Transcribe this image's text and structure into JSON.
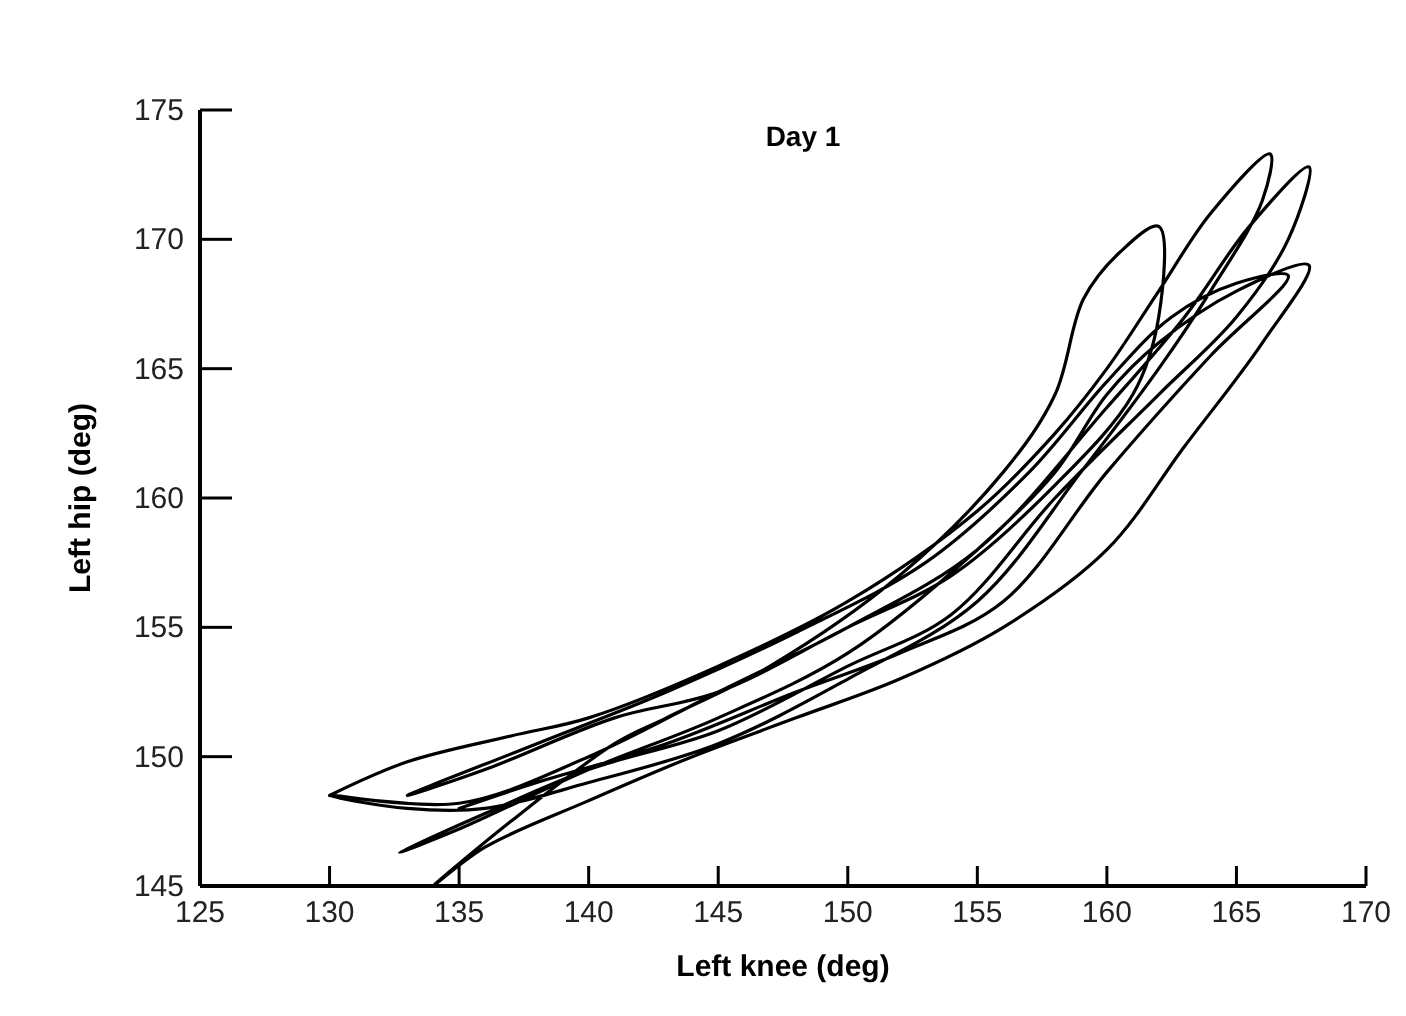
{
  "chart_data": {
    "type": "line",
    "title": "Day 1",
    "xlabel": "Left knee (deg)",
    "ylabel": "Left hip (deg)",
    "xlim": [
      125,
      170
    ],
    "ylim": [
      145,
      175
    ],
    "xticks": [
      125,
      130,
      135,
      140,
      145,
      150,
      155,
      160,
      165,
      170
    ],
    "yticks": [
      145,
      150,
      155,
      160,
      165,
      170,
      175
    ],
    "grid": false,
    "marker": "none",
    "line_style": "solid",
    "series": [
      {
        "color": "#000000",
        "x": [
          130,
          133,
          137,
          140,
          145,
          150,
          155,
          158,
          160,
          162,
          164,
          166.3,
          166,
          164,
          162,
          159,
          155,
          150,
          145,
          140,
          136,
          133,
          130,
          135,
          140,
          145,
          150,
          155,
          160,
          163,
          165.5,
          167.8,
          167,
          165,
          162,
          158,
          154,
          150,
          145,
          140,
          136,
          132.7,
          135,
          140,
          145,
          150,
          155,
          158,
          160,
          162,
          165,
          167.8,
          166,
          163,
          160,
          156,
          152,
          148,
          144,
          140,
          136,
          134,
          137,
          141,
          143,
          147,
          152,
          156,
          158,
          159.1,
          160.5,
          162,
          162,
          161,
          158,
          154,
          150,
          145,
          141,
          136,
          133,
          138,
          143,
          148,
          153,
          157,
          160,
          162.5,
          165,
          167,
          164,
          160,
          156,
          152,
          148,
          143,
          138,
          135
        ],
        "values": [
          148.5,
          149.8,
          150.8,
          151.5,
          153.5,
          156,
          159.5,
          162.5,
          165,
          168,
          171,
          173.3,
          171.5,
          168,
          165,
          161,
          156,
          153,
          150.5,
          149,
          148,
          148,
          148.5,
          148.2,
          150,
          152.5,
          155,
          158,
          163.5,
          167,
          170.5,
          172.8,
          170,
          167,
          164,
          160,
          155.5,
          153.5,
          151,
          149.5,
          147.8,
          146.3,
          147.2,
          149.5,
          151.5,
          154,
          158,
          161,
          164,
          166,
          168,
          169,
          166,
          162,
          158,
          155,
          153,
          151.5,
          150,
          148.3,
          146.5,
          145,
          147.5,
          150.5,
          151.5,
          153.5,
          157,
          161,
          164,
          167.7,
          169.5,
          170.5,
          167,
          164,
          160.5,
          157,
          155,
          152.5,
          151.5,
          149.5,
          148.5,
          150.5,
          152.5,
          154.8,
          157.5,
          161,
          164.5,
          167,
          168.3,
          168.6,
          165.5,
          161,
          156,
          154,
          152.5,
          150.5,
          149,
          148
        ]
      }
    ]
  }
}
